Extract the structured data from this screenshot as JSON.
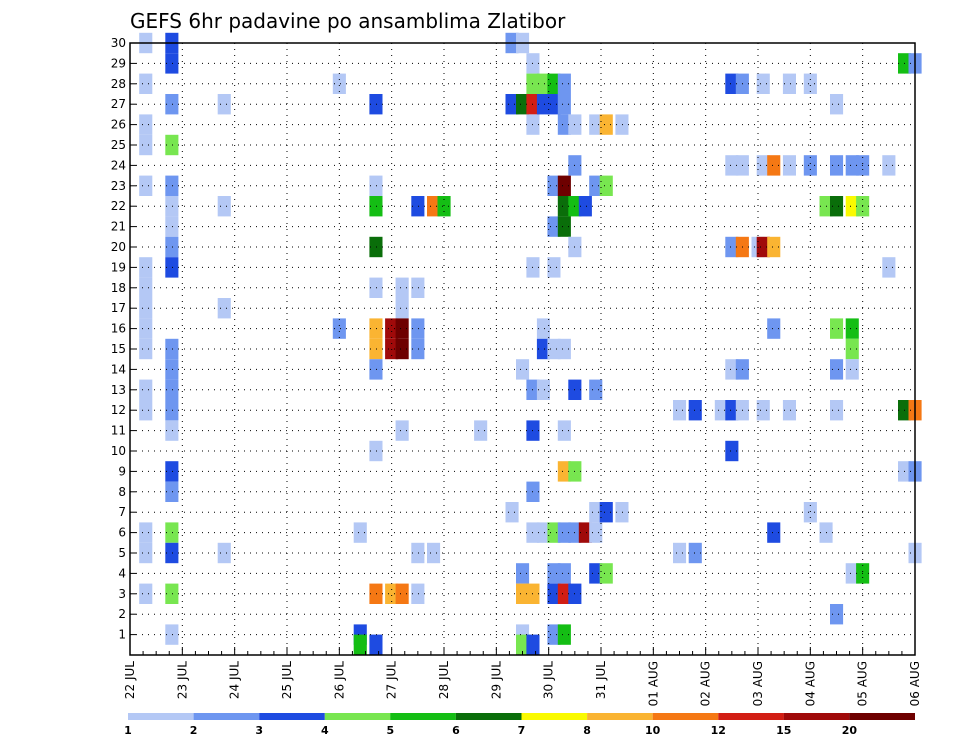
{
  "chart_data": {
    "type": "heatmap",
    "title": "GEFS 6hr padavine po ansamblima Zlatibor",
    "x_ticks": [
      "22 JUL",
      "23 JUL",
      "24 JUL",
      "25 JUL",
      "26 JUL",
      "27 JUL",
      "28 JUL",
      "29 JUL",
      "30 JUL",
      "31 JUL",
      "01 AUG",
      "02 AUG",
      "03 AUG",
      "04 AUG",
      "05 AUG",
      "06 AUG"
    ],
    "y_ticks": [
      1,
      2,
      3,
      4,
      5,
      6,
      7,
      8,
      9,
      10,
      11,
      12,
      13,
      14,
      15,
      16,
      17,
      18,
      19,
      20,
      21,
      22,
      23,
      24,
      25,
      26,
      27,
      28,
      29,
      30
    ],
    "y_range": [
      0,
      30
    ],
    "x_range_days": [
      0,
      15
    ],
    "grid": true,
    "colorbar": {
      "levels": [
        "1",
        "2",
        "3",
        "4",
        "5",
        "6",
        "7",
        "8",
        "10",
        "12",
        "15",
        "20"
      ],
      "colors": [
        "#b4c8f5",
        "#6e96f0",
        "#1e4be1",
        "#78e650",
        "#14be14",
        "#0a6e0a",
        "#fafa00",
        "#fab432",
        "#f57814",
        "#d21e14",
        "#a00a0a",
        "#6e0000"
      ]
    },
    "cells": [
      [
        0.3,
        30,
        0
      ],
      [
        0.3,
        28,
        0
      ],
      [
        0.3,
        26,
        0
      ],
      [
        0.3,
        25,
        0
      ],
      [
        0.3,
        23,
        0
      ],
      [
        0.3,
        19,
        0
      ],
      [
        0.3,
        18,
        0
      ],
      [
        0.3,
        17,
        0
      ],
      [
        0.3,
        16,
        0
      ],
      [
        0.3,
        15,
        0
      ],
      [
        0.3,
        13,
        0
      ],
      [
        0.3,
        12,
        0
      ],
      [
        0.3,
        6,
        0
      ],
      [
        0.3,
        5,
        0
      ],
      [
        0.3,
        3,
        0
      ],
      [
        0.8,
        30,
        2
      ],
      [
        0.8,
        29,
        2
      ],
      [
        0.8,
        27,
        1
      ],
      [
        0.8,
        25,
        3
      ],
      [
        0.8,
        23,
        1
      ],
      [
        0.8,
        22,
        0
      ],
      [
        0.8,
        21,
        0
      ],
      [
        0.8,
        20,
        1
      ],
      [
        0.8,
        19,
        2
      ],
      [
        0.8,
        15,
        1
      ],
      [
        0.8,
        14,
        1
      ],
      [
        0.8,
        13,
        1
      ],
      [
        0.8,
        12,
        1
      ],
      [
        0.8,
        11,
        0
      ],
      [
        0.8,
        9,
        2
      ],
      [
        0.8,
        8,
        1
      ],
      [
        0.8,
        6,
        3
      ],
      [
        0.8,
        5,
        2
      ],
      [
        0.8,
        3,
        3
      ],
      [
        0.8,
        1,
        0
      ],
      [
        1.8,
        27,
        0
      ],
      [
        1.8,
        22,
        0
      ],
      [
        1.8,
        17,
        0
      ],
      [
        1.8,
        5,
        0
      ],
      [
        4.0,
        28,
        0
      ],
      [
        4.0,
        16,
        1
      ],
      [
        4.4,
        6,
        0
      ],
      [
        4.4,
        1,
        2
      ],
      [
        4.4,
        0.5,
        4
      ],
      [
        4.7,
        27,
        2
      ],
      [
        4.7,
        23,
        0
      ],
      [
        4.7,
        22,
        4
      ],
      [
        4.7,
        20,
        5
      ],
      [
        4.7,
        18,
        0
      ],
      [
        4.7,
        16,
        7
      ],
      [
        4.7,
        15,
        7
      ],
      [
        4.7,
        14,
        1
      ],
      [
        4.7,
        10,
        0
      ],
      [
        4.7,
        3,
        8
      ],
      [
        4.7,
        0.5,
        2
      ],
      [
        5.0,
        16,
        10
      ],
      [
        5.0,
        15,
        10
      ],
      [
        5.0,
        3,
        7
      ],
      [
        5.2,
        18,
        0
      ],
      [
        5.2,
        17,
        0
      ],
      [
        5.2,
        16,
        11
      ],
      [
        5.2,
        15,
        11
      ],
      [
        5.2,
        11,
        0
      ],
      [
        5.2,
        3,
        8
      ],
      [
        5.5,
        22,
        2
      ],
      [
        5.5,
        18,
        0
      ],
      [
        5.5,
        16,
        1
      ],
      [
        5.5,
        15,
        1
      ],
      [
        5.5,
        5,
        0
      ],
      [
        5.5,
        3,
        0
      ],
      [
        5.8,
        22,
        8
      ],
      [
        5.8,
        5,
        0
      ],
      [
        6.0,
        22,
        4
      ],
      [
        6.7,
        11,
        0
      ],
      [
        7.3,
        30,
        1
      ],
      [
        7.3,
        27,
        2
      ],
      [
        7.3,
        7,
        0
      ],
      [
        7.5,
        30,
        0
      ],
      [
        7.5,
        27,
        5
      ],
      [
        7.5,
        14,
        0
      ],
      [
        7.5,
        4,
        1
      ],
      [
        7.5,
        3,
        7
      ],
      [
        7.5,
        1,
        0
      ],
      [
        7.5,
        0.5,
        3
      ],
      [
        7.7,
        29,
        0
      ],
      [
        7.7,
        28,
        3
      ],
      [
        7.7,
        27,
        9
      ],
      [
        7.7,
        26,
        0
      ],
      [
        7.7,
        19,
        0
      ],
      [
        7.7,
        13,
        1
      ],
      [
        7.7,
        11,
        2
      ],
      [
        7.7,
        8,
        1
      ],
      [
        7.7,
        6,
        0
      ],
      [
        7.7,
        3,
        7
      ],
      [
        7.7,
        0.5,
        2
      ],
      [
        7.9,
        28,
        3
      ],
      [
        7.9,
        27,
        2
      ],
      [
        7.9,
        16,
        0
      ],
      [
        7.9,
        15,
        2
      ],
      [
        7.9,
        13,
        0
      ],
      [
        7.9,
        6,
        0
      ],
      [
        8.1,
        28,
        4
      ],
      [
        8.1,
        27,
        2
      ],
      [
        8.1,
        23,
        1
      ],
      [
        8.1,
        21,
        1
      ],
      [
        8.1,
        19,
        0
      ],
      [
        8.1,
        15,
        0
      ],
      [
        8.1,
        6,
        3
      ],
      [
        8.1,
        4,
        1
      ],
      [
        8.1,
        3,
        2
      ],
      [
        8.1,
        1,
        1
      ],
      [
        8.3,
        28,
        1
      ],
      [
        8.3,
        27,
        1
      ],
      [
        8.3,
        26,
        1
      ],
      [
        8.3,
        23,
        11
      ],
      [
        8.3,
        22,
        5
      ],
      [
        8.3,
        21,
        5
      ],
      [
        8.3,
        15,
        0
      ],
      [
        8.3,
        11,
        0
      ],
      [
        8.3,
        9,
        7
      ],
      [
        8.3,
        6,
        1
      ],
      [
        8.3,
        4,
        1
      ],
      [
        8.3,
        3,
        9
      ],
      [
        8.3,
        1,
        4
      ],
      [
        8.5,
        26,
        0
      ],
      [
        8.5,
        24,
        1
      ],
      [
        8.5,
        22,
        4
      ],
      [
        8.5,
        20,
        0
      ],
      [
        8.5,
        13,
        2
      ],
      [
        8.5,
        9,
        3
      ],
      [
        8.5,
        6,
        1
      ],
      [
        8.5,
        3,
        2
      ],
      [
        8.7,
        22,
        2
      ],
      [
        8.7,
        6,
        10
      ],
      [
        8.9,
        26,
        0
      ],
      [
        8.9,
        23,
        1
      ],
      [
        8.9,
        13,
        1
      ],
      [
        8.9,
        7,
        0
      ],
      [
        8.9,
        6,
        0
      ],
      [
        8.9,
        4,
        2
      ],
      [
        9.1,
        26,
        7
      ],
      [
        9.1,
        23,
        3
      ],
      [
        9.1,
        7,
        2
      ],
      [
        9.1,
        4,
        3
      ],
      [
        9.4,
        26,
        0
      ],
      [
        9.4,
        7,
        0
      ],
      [
        10.5,
        12,
        0
      ],
      [
        10.5,
        5,
        0
      ],
      [
        10.8,
        12,
        2
      ],
      [
        10.8,
        5,
        1
      ],
      [
        11.3,
        12,
        0
      ],
      [
        11.5,
        28,
        2
      ],
      [
        11.5,
        24,
        0
      ],
      [
        11.5,
        20,
        1
      ],
      [
        11.5,
        14,
        0
      ],
      [
        11.5,
        12,
        2
      ],
      [
        11.5,
        10,
        2
      ],
      [
        11.7,
        28,
        1
      ],
      [
        11.7,
        24,
        0
      ],
      [
        11.7,
        20,
        8
      ],
      [
        11.7,
        14,
        1
      ],
      [
        11.7,
        12,
        0
      ],
      [
        12.0,
        20,
        0
      ],
      [
        12.1,
        28,
        0
      ],
      [
        12.1,
        24,
        0
      ],
      [
        12.1,
        20,
        10
      ],
      [
        12.1,
        12,
        0
      ],
      [
        12.3,
        24,
        8
      ],
      [
        12.3,
        20,
        7
      ],
      [
        12.3,
        16,
        1
      ],
      [
        12.3,
        6,
        2
      ],
      [
        12.6,
        28,
        0
      ],
      [
        12.6,
        24,
        0
      ],
      [
        12.6,
        12,
        0
      ],
      [
        13.0,
        28,
        0
      ],
      [
        13.0,
        24,
        1
      ],
      [
        13.0,
        7,
        0
      ],
      [
        13.3,
        22,
        3
      ],
      [
        13.3,
        6,
        0
      ],
      [
        13.5,
        27,
        0
      ],
      [
        13.5,
        24,
        1
      ],
      [
        13.5,
        22,
        5
      ],
      [
        13.5,
        16,
        3
      ],
      [
        13.5,
        14,
        1
      ],
      [
        13.5,
        12,
        0
      ],
      [
        13.5,
        2,
        1
      ],
      [
        13.8,
        24,
        1
      ],
      [
        13.8,
        22,
        6
      ],
      [
        13.8,
        16,
        4
      ],
      [
        13.8,
        15,
        3
      ],
      [
        13.8,
        14,
        0
      ],
      [
        13.8,
        4,
        0
      ],
      [
        14.0,
        24,
        1
      ],
      [
        14.0,
        22,
        3
      ],
      [
        14.0,
        4,
        4
      ],
      [
        14.5,
        24,
        0
      ],
      [
        14.5,
        19,
        0
      ],
      [
        14.8,
        29,
        4
      ],
      [
        14.8,
        12,
        5
      ],
      [
        14.8,
        9,
        0
      ],
      [
        15.0,
        29,
        1
      ],
      [
        15.0,
        12,
        8
      ],
      [
        15.0,
        9,
        1
      ],
      [
        15.0,
        5,
        0
      ]
    ]
  }
}
